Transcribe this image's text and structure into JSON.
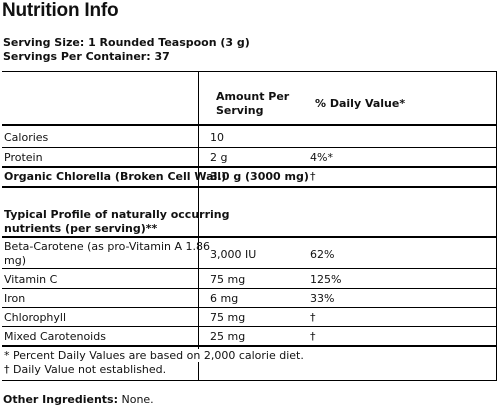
{
  "title": "Nutrition Info",
  "serving_size": "Serving Size: 1 Rounded Teaspoon (3 g)",
  "servings_per_container": "Servings Per Container: 37",
  "header": {
    "amount_line1": "Amount Per",
    "amount_line2": "Serving",
    "daily_value": "% Daily Value*"
  },
  "rows": [
    {
      "name": "Calories",
      "amount": "10",
      "dv": ""
    },
    {
      "name": "Protein",
      "amount": "2 g",
      "dv": "4%*"
    },
    {
      "name": "Organic Chlorella (Broken Cell Wall)",
      "amount": "3.0 g (3000 mg)",
      "dv": "†"
    }
  ],
  "profile_heading_line1": "Typical Profile of naturally occurring",
  "profile_heading_line2": "nutrients (per serving)**",
  "profile_rows": [
    {
      "name_line1": "Beta-Carotene (as pro-Vitamin A 1.86",
      "name_line2": "mg)",
      "amount": "3,000 IU",
      "dv": "62%"
    },
    {
      "name": "Vitamin C",
      "amount": "75 mg",
      "dv": "125%"
    },
    {
      "name": "Iron",
      "amount": "6 mg",
      "dv": "33%"
    },
    {
      "name": "Chlorophyll",
      "amount": "75 mg",
      "dv": "†"
    },
    {
      "name": "Mixed Carotenoids",
      "amount": "25 mg",
      "dv": "†"
    }
  ],
  "footnotes": {
    "percent_note": "* Percent Daily Values are based on 2,000 calorie diet.",
    "dagger_note": "† Daily Value not established."
  },
  "other_ingredients": {
    "label": "Other Ingredients:",
    "value": "None."
  }
}
